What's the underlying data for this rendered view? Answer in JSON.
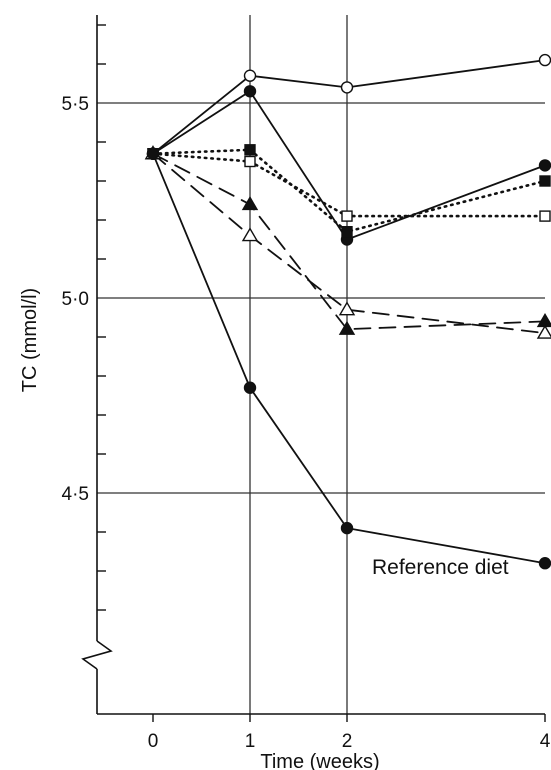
{
  "chart_data": {
    "type": "line",
    "title": "",
    "xlabel": "Time (weeks)",
    "ylabel": "TC (mmol/l)",
    "x_ticks": [
      0,
      1,
      2,
      4
    ],
    "y_ticks": [
      4.5,
      5.0,
      5.5
    ],
    "y_tick_labels": [
      "4·5",
      "5·0",
      "5·5"
    ],
    "ylim": [
      4.1,
      5.95
    ],
    "axis_break": true,
    "grid": "major lines at y 4·5, 5·0, 5·5 and x 1, 2",
    "annotations": [
      {
        "text": "Reference diet",
        "x": 2,
        "y": 4.42
      }
    ],
    "series": [
      {
        "marker": "open-circle",
        "line": "solid",
        "x": [
          0,
          1,
          2,
          4
        ],
        "values": [
          5.37,
          5.57,
          5.54,
          5.61
        ]
      },
      {
        "marker": "filled-circle",
        "line": "solid",
        "x": [
          0,
          1,
          2,
          4
        ],
        "values": [
          5.37,
          5.53,
          5.15,
          5.34
        ]
      },
      {
        "marker": "filled-square",
        "line": "dotted",
        "x": [
          0,
          1,
          2,
          4
        ],
        "values": [
          5.37,
          5.38,
          5.17,
          5.3
        ]
      },
      {
        "marker": "open-square",
        "line": "dotted",
        "x": [
          0,
          1,
          2,
          4
        ],
        "values": [
          5.37,
          5.35,
          5.21,
          5.21
        ]
      },
      {
        "marker": "filled-triangle",
        "line": "dashed",
        "x": [
          0,
          1,
          2,
          4
        ],
        "values": [
          5.37,
          5.24,
          4.92,
          4.94
        ]
      },
      {
        "marker": "open-triangle",
        "line": "dashed",
        "x": [
          0,
          1,
          2,
          4
        ],
        "values": [
          5.37,
          5.16,
          4.97,
          4.91
        ]
      },
      {
        "marker": "filled-circle",
        "line": "solid",
        "x": [
          0,
          1,
          2,
          4
        ],
        "values": [
          5.37,
          4.77,
          4.41,
          4.32
        ]
      }
    ]
  }
}
